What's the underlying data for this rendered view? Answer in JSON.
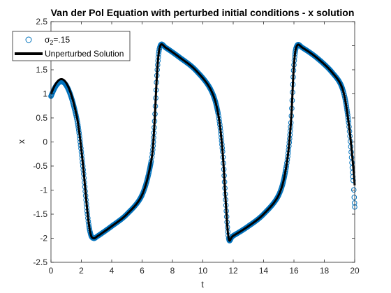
{
  "chart_data": {
    "type": "line",
    "title": "Van der Pol Equation with perturbed initial conditions - x solution",
    "xlabel": "t",
    "ylabel": "x",
    "xlim": [
      0,
      20
    ],
    "ylim": [
      -2.5,
      2.5
    ],
    "xticks": [
      "0",
      "2",
      "4",
      "6",
      "8",
      "10",
      "12",
      "14",
      "16",
      "18",
      "20"
    ],
    "yticks": [
      "-2.5",
      "-2",
      "-1.5",
      "-1",
      "-0.5",
      "0",
      "0.5",
      "1",
      "1.5",
      "2",
      "2.5"
    ],
    "legend": {
      "position": "top-left",
      "entries": [
        {
          "label_main": "σ",
          "label_sub": "2",
          "label_rest": "=.15"
        },
        {
          "label": "Unperturbed Solution"
        }
      ]
    },
    "series": [
      {
        "name": "σ2=.15",
        "style": "circle-markers",
        "color": "#0072BD",
        "x": [
          0,
          0.3,
          0.6,
          0.9,
          1.2,
          1.5,
          1.8,
          2.1,
          2.4,
          2.6,
          2.8,
          3.1,
          4.0,
          5.0,
          6.0,
          6.6,
          6.8,
          7.0,
          7.2,
          7.6,
          8.5,
          9.5,
          10.5,
          11.0,
          11.3,
          11.5,
          11.7,
          12.0,
          13.0,
          14.0,
          15.0,
          15.5,
          15.8,
          16.0,
          16.2,
          16.6,
          17.5,
          18.5,
          19.2,
          19.6,
          19.9,
          20.0
        ],
        "y": [
          0.95,
          1.15,
          1.25,
          1.22,
          1.05,
          0.75,
          0.3,
          -0.5,
          -1.5,
          -1.9,
          -2.0,
          -1.95,
          -1.75,
          -1.5,
          -1.1,
          -0.4,
          0.3,
          1.5,
          2.0,
          1.95,
          1.75,
          1.5,
          1.1,
          0.6,
          -0.2,
          -1.2,
          -2.0,
          -1.95,
          -1.75,
          -1.5,
          -1.1,
          -0.5,
          0.4,
          1.6,
          2.0,
          1.95,
          1.75,
          1.45,
          1.1,
          0.4,
          -0.8,
          -1.35
        ]
      },
      {
        "name": "Unperturbed Solution",
        "style": "line",
        "color": "#000000",
        "x": [
          0,
          0.3,
          0.6,
          0.9,
          1.2,
          1.5,
          1.8,
          2.1,
          2.4,
          2.6,
          2.8,
          3.1,
          4.0,
          5.0,
          6.0,
          6.6,
          6.8,
          7.0,
          7.2,
          7.6,
          8.5,
          9.5,
          10.5,
          11.0,
          11.3,
          11.5,
          11.7,
          12.0,
          13.0,
          14.0,
          15.0,
          15.5,
          15.8,
          16.0,
          16.2,
          16.6,
          17.5,
          18.5,
          19.2,
          19.6,
          19.9,
          20.0
        ],
        "y": [
          1.0,
          1.2,
          1.3,
          1.27,
          1.1,
          0.8,
          0.35,
          -0.45,
          -1.45,
          -1.9,
          -2.0,
          -1.95,
          -1.75,
          -1.5,
          -1.1,
          -0.4,
          0.3,
          1.5,
          2.0,
          1.95,
          1.75,
          1.5,
          1.1,
          0.6,
          -0.2,
          -1.2,
          -2.0,
          -1.95,
          -1.75,
          -1.5,
          -1.1,
          -0.5,
          0.4,
          1.6,
          2.0,
          1.95,
          1.75,
          1.45,
          1.1,
          0.4,
          -0.5,
          -0.9
        ]
      }
    ],
    "grid": false,
    "colors": {
      "axes": "#262626",
      "background": "#ffffff",
      "perturbed": "#0072BD",
      "unperturbed": "#000000"
    }
  }
}
